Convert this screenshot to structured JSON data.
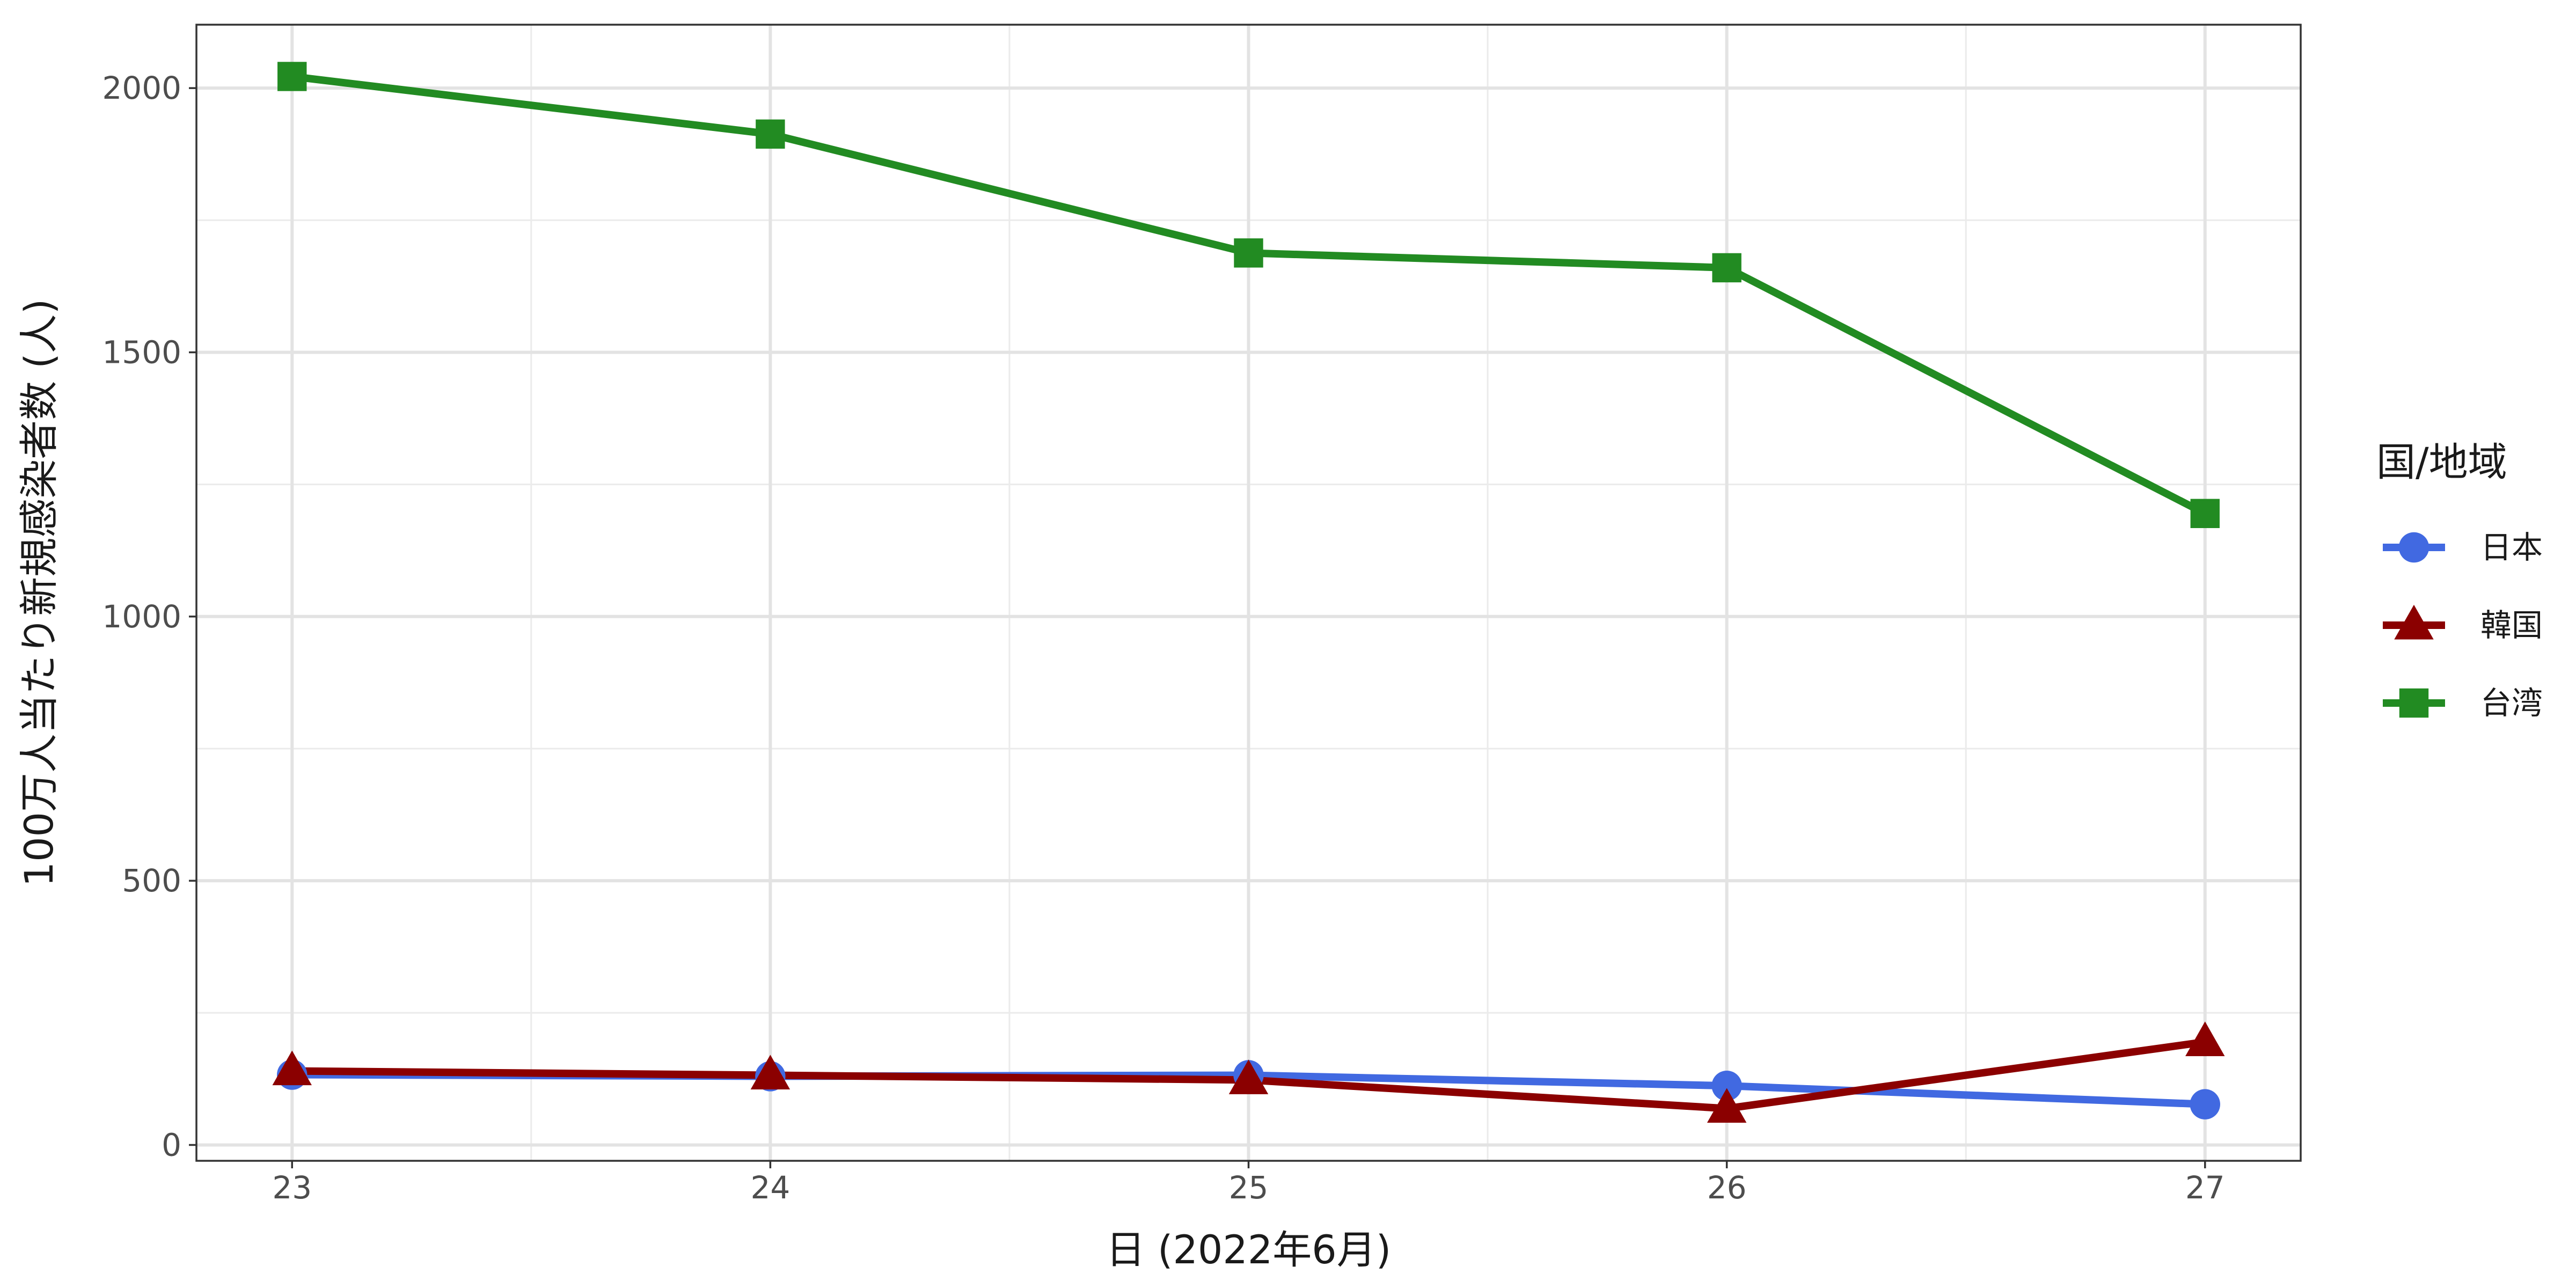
{
  "chart_data": {
    "type": "line",
    "title": "",
    "xlabel": "日 (2022年6月)",
    "ylabel": "100万人当たり新規感染者数 (人)",
    "x": [
      23,
      24,
      25,
      26,
      27
    ],
    "x_tick_labels": [
      "23",
      "24",
      "25",
      "26",
      "27"
    ],
    "xlim": [
      22.8,
      27.2
    ],
    "ylim": [
      -30,
      2120
    ],
    "y_ticks": [
      0,
      500,
      1000,
      1500,
      2000
    ],
    "y_tick_labels": [
      "0",
      "500",
      "1000",
      "1500",
      "2000"
    ],
    "grid": true,
    "legend_title": "国/地域",
    "legend_position": "right",
    "series": [
      {
        "name": "日本",
        "color": "#4169E1",
        "marker": "circle",
        "values": [
          133,
          130,
          132,
          112,
          77
        ]
      },
      {
        "name": "韓国",
        "color": "#8B0000",
        "marker": "triangle",
        "values": [
          140,
          132,
          123,
          69,
          195
        ]
      },
      {
        "name": "台湾",
        "color": "#228B22",
        "marker": "square",
        "values": [
          2022,
          1913,
          1688,
          1660,
          1195
        ]
      }
    ]
  }
}
